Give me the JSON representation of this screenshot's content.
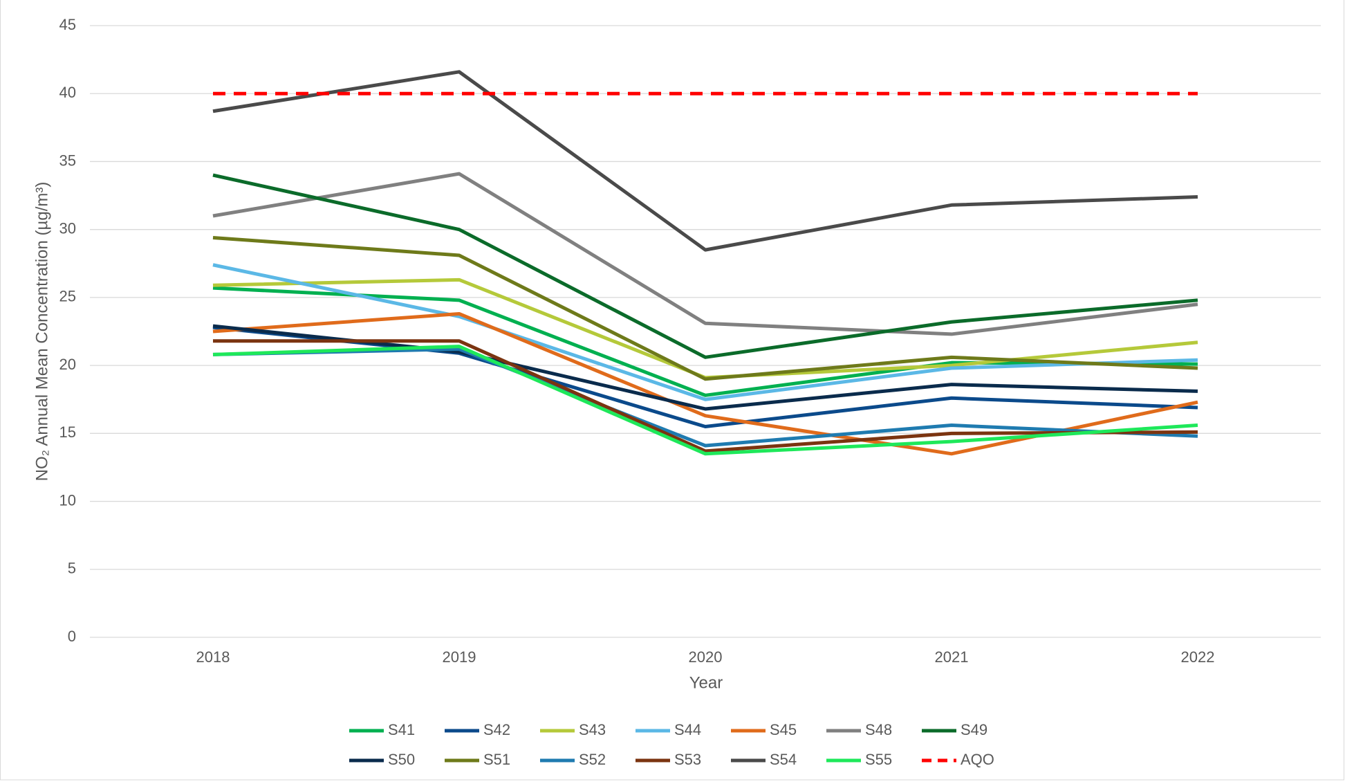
{
  "chart_data": {
    "type": "line",
    "x_label": "Year",
    "y_label": "NO₂ Annual Mean Concentration (µg/m³)",
    "categories": [
      "2018",
      "2019",
      "2020",
      "2021",
      "2022"
    ],
    "ylim": [
      0,
      45
    ],
    "yticks": [
      0,
      5,
      10,
      15,
      20,
      25,
      30,
      35,
      40,
      45
    ],
    "grid": true,
    "series": [
      {
        "name": "S41",
        "color": "#00b050",
        "values": [
          25.7,
          24.8,
          17.8,
          20.2,
          20.1
        ]
      },
      {
        "name": "S42",
        "color": "#0b4a8b",
        "values": [
          22.8,
          20.9,
          15.5,
          17.6,
          16.9
        ]
      },
      {
        "name": "S43",
        "color": "#b5c93a",
        "values": [
          25.9,
          26.3,
          19.1,
          20.0,
          21.7
        ]
      },
      {
        "name": "S44",
        "color": "#5bb8e6",
        "values": [
          27.4,
          23.6,
          17.5,
          19.8,
          20.4
        ]
      },
      {
        "name": "S45",
        "color": "#e06b1b",
        "values": [
          22.5,
          23.8,
          16.3,
          13.5,
          17.3
        ]
      },
      {
        "name": "S48",
        "color": "#808080",
        "values": [
          31.0,
          34.1,
          23.1,
          22.3,
          24.5
        ]
      },
      {
        "name": "S49",
        "color": "#0b6b2a",
        "values": [
          34.0,
          30.0,
          20.6,
          23.2,
          24.8
        ]
      },
      {
        "name": "S50",
        "color": "#0a2b4c",
        "values": [
          22.9,
          21.0,
          16.8,
          18.6,
          18.1
        ]
      },
      {
        "name": "S51",
        "color": "#6e7a1a",
        "values": [
          29.4,
          28.1,
          19.0,
          20.6,
          19.8
        ]
      },
      {
        "name": "S52",
        "color": "#1f7bb0",
        "values": [
          20.8,
          21.2,
          14.1,
          15.6,
          14.8
        ]
      },
      {
        "name": "S53",
        "color": "#7b3410",
        "values": [
          21.8,
          21.8,
          13.7,
          15.0,
          15.1
        ]
      },
      {
        "name": "S54",
        "color": "#4a4a4a",
        "values": [
          38.7,
          41.6,
          28.5,
          31.8,
          32.4
        ]
      },
      {
        "name": "S55",
        "color": "#1ee85a",
        "values": [
          20.8,
          21.4,
          13.5,
          14.4,
          15.6
        ]
      },
      {
        "name": "AQO",
        "color": "#ff0000",
        "dashed": true,
        "values": [
          40,
          40,
          40,
          40,
          40
        ]
      }
    ]
  }
}
